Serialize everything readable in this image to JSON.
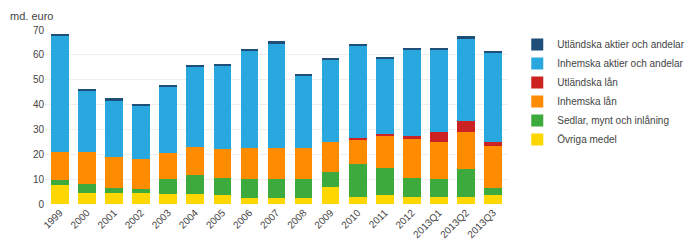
{
  "chart_data": {
    "type": "bar",
    "stacked": true,
    "ylabel": "md. euro",
    "categories": [
      "1999",
      "2000",
      "2001",
      "2002",
      "2003",
      "2004",
      "2005",
      "2006",
      "2007",
      "2008",
      "2009",
      "2010",
      "2011",
      "2012",
      "2013Q1",
      "2013Q2",
      "2013Q3"
    ],
    "series": [
      {
        "name": "Övriga medel",
        "color": "#FFD700",
        "values": [
          7.5,
          4.5,
          4.5,
          4.5,
          4.0,
          4.0,
          3.5,
          2.5,
          2.5,
          2.5,
          7.0,
          3.0,
          3.5,
          3.0,
          3.0,
          3.0,
          3.5
        ]
      },
      {
        "name": "Sedlar, mynt och inlåning",
        "color": "#3DAA3D",
        "values": [
          2.0,
          3.5,
          2.0,
          1.5,
          6.0,
          7.5,
          7.0,
          7.5,
          7.5,
          7.5,
          6.0,
          13.0,
          11.0,
          7.5,
          7.0,
          11.0,
          3.0
        ]
      },
      {
        "name": "Inhemska lån",
        "color": "#FF8C00",
        "values": [
          11.5,
          13.0,
          12.5,
          12.0,
          10.5,
          11.5,
          11.5,
          12.5,
          12.5,
          12.5,
          12.0,
          10.0,
          13.0,
          15.5,
          15.0,
          15.0,
          17.0
        ]
      },
      {
        "name": "Utländska lån",
        "color": "#CC2222",
        "values": [
          0.0,
          0.0,
          0.0,
          0.0,
          0.0,
          0.0,
          0.0,
          0.0,
          0.0,
          0.0,
          0.0,
          0.5,
          0.5,
          1.5,
          4.0,
          4.5,
          1.5
        ]
      },
      {
        "name": "Inhemska aktier och andelar",
        "color": "#29A8E0",
        "values": [
          46.5,
          24.5,
          22.5,
          21.5,
          26.5,
          32.0,
          33.5,
          39.0,
          42.0,
          29.0,
          33.0,
          37.0,
          30.5,
          34.5,
          33.0,
          33.0,
          36.0
        ]
      },
      {
        "name": "Utländska aktier och andelar",
        "color": "#1F4E79",
        "values": [
          1.0,
          0.5,
          1.0,
          0.5,
          1.0,
          1.0,
          1.0,
          1.0,
          1.0,
          0.5,
          0.5,
          1.0,
          0.5,
          0.5,
          0.5,
          1.0,
          0.5
        ]
      }
    ],
    "ylim": [
      0,
      70
    ],
    "yticks": [
      0,
      10,
      20,
      30,
      40,
      50,
      60,
      70
    ],
    "grid": true,
    "legend": "right"
  }
}
